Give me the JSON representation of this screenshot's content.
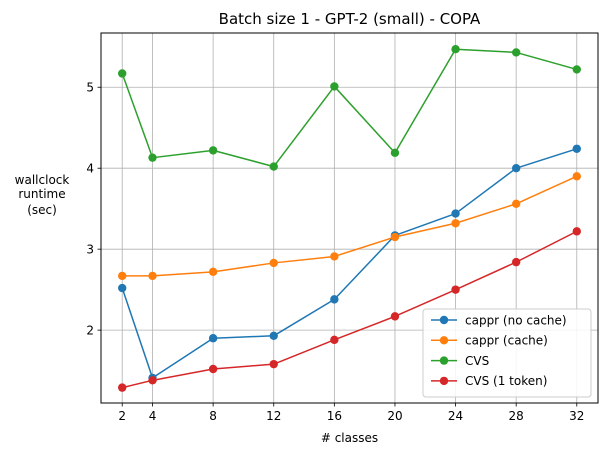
{
  "chart_data": {
    "type": "line",
    "title": "Batch size 1 - GPT-2 (small) - COPA",
    "xlabel": "# classes",
    "ylabel": [
      "wallclock",
      "runtime",
      "(sec)"
    ],
    "x": [
      2,
      4,
      8,
      12,
      16,
      20,
      24,
      28,
      32
    ],
    "xticks": [
      2,
      4,
      8,
      12,
      16,
      20,
      24,
      28,
      32
    ],
    "yticks": [
      2,
      3,
      4,
      5
    ],
    "xlim": [
      0.6,
      33.4
    ],
    "ylim": [
      1.1,
      5.67
    ],
    "grid": true,
    "legend_position": "lower right",
    "series": [
      {
        "name": "cappr (no cache)",
        "color": "#1f77b4",
        "values": [
          2.52,
          1.41,
          1.9,
          1.93,
          2.38,
          3.17,
          3.44,
          4.0,
          4.24
        ]
      },
      {
        "name": "cappr (cache)",
        "color": "#ff7f0e",
        "values": [
          2.67,
          2.67,
          2.72,
          2.83,
          2.91,
          3.15,
          3.32,
          3.56,
          3.9
        ]
      },
      {
        "name": "CVS",
        "color": "#2ca02c",
        "values": [
          5.17,
          4.13,
          4.22,
          4.02,
          5.01,
          4.19,
          5.47,
          5.43,
          5.22
        ]
      },
      {
        "name": "CVS (1 token)",
        "color": "#d62728",
        "values": [
          1.29,
          1.38,
          1.52,
          1.58,
          1.88,
          2.17,
          2.5,
          2.84,
          3.22
        ]
      }
    ]
  }
}
